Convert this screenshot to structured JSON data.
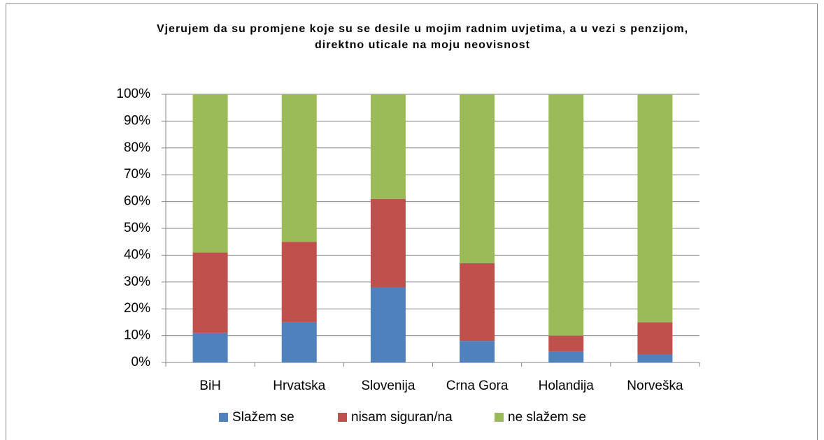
{
  "chart_data": {
    "type": "stacked_bar",
    "title": "Vjerujem da su promjene koje su se desile u mojim radnim uvjetima, a u vezi s penzijom, direktno uticale na moju neovisnost",
    "categories": [
      "BiH",
      "Hrvatska",
      "Slovenija",
      "Crna Gora",
      "Holandija",
      "Norveška"
    ],
    "series": [
      {
        "name": "Slažem se",
        "color": "#4f81bd",
        "values": [
          11,
          15,
          28,
          8,
          4,
          3
        ]
      },
      {
        "name": "nisam siguran/na",
        "color": "#c0504d",
        "values": [
          30,
          30,
          33,
          29,
          6,
          12
        ]
      },
      {
        "name": "ne slažem se",
        "color": "#9bbb59",
        "values": [
          59,
          55,
          39,
          63,
          90,
          85
        ]
      }
    ],
    "ylim": [
      0,
      100
    ],
    "yticks": [
      {
        "value": 0,
        "label": "0%"
      },
      {
        "value": 10,
        "label": "10%"
      },
      {
        "value": 20,
        "label": "20%"
      },
      {
        "value": 30,
        "label": "30%"
      },
      {
        "value": 40,
        "label": "40%"
      },
      {
        "value": 50,
        "label": "50%"
      },
      {
        "value": 60,
        "label": "60%"
      },
      {
        "value": 70,
        "label": "70%"
      },
      {
        "value": 80,
        "label": "80%"
      },
      {
        "value": 90,
        "label": "90%"
      },
      {
        "value": 100,
        "label": "100%"
      }
    ],
    "grid": true,
    "legend": "bottom"
  }
}
